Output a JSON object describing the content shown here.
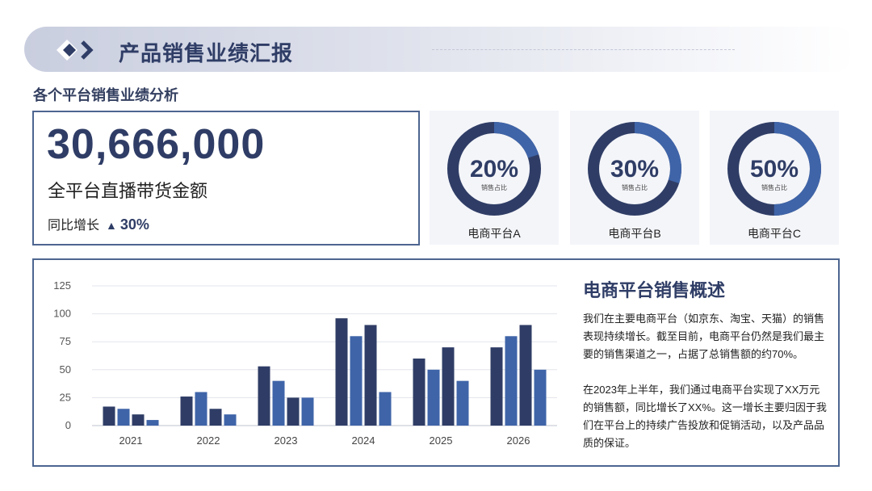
{
  "header": {
    "title": "产品销售业绩汇报"
  },
  "section": {
    "subtitle": "各个平台销售业绩分析"
  },
  "kpi": {
    "value": "30,666,000",
    "label": "全平台直播带货金额",
    "growth_label": "同比增长",
    "growth_arrow": "▲",
    "growth_value": "30%"
  },
  "donuts": [
    {
      "percent": 20,
      "value_label": "20%",
      "caption": "销售占比",
      "platform": "电商平台A"
    },
    {
      "percent": 30,
      "value_label": "30%",
      "caption": "销售占比",
      "platform": "电商平台B"
    },
    {
      "percent": 50,
      "value_label": "50%",
      "caption": "销售占比",
      "platform": "电商平台C"
    }
  ],
  "colors": {
    "dark_navy": "#2f3d66",
    "mid_blue": "#3f64a8",
    "donut_track": "#2f3d66",
    "donut_fill": "#3f64a8"
  },
  "chart_data": {
    "type": "bar",
    "categories": [
      "2021",
      "2022",
      "2023",
      "2024",
      "2025",
      "2026"
    ],
    "series": [
      {
        "values": [
          17,
          26,
          53,
          96,
          60,
          70
        ]
      },
      {
        "values": [
          15,
          30,
          40,
          80,
          50,
          80
        ]
      },
      {
        "values": [
          10,
          15,
          25,
          90,
          70,
          90
        ]
      },
      {
        "values": [
          5,
          10,
          25,
          30,
          40,
          50
        ]
      }
    ],
    "yticks": [
      0,
      25,
      50,
      75,
      100,
      125
    ],
    "ylim": [
      0,
      125
    ],
    "grid": true,
    "legend": "none"
  },
  "description": {
    "title": "电商平台销售概述",
    "paragraph1": "我们在主要电商平台（如京东、淘宝、天猫）的销售表现持续增长。截至目前，电商平台仍然是我们最主要的销售渠道之一，占据了总销售额的约70%。",
    "paragraph2": "在2023年上半年，我们通过电商平台实现了XX万元的销售额，同比增长了XX%。这一增长主要归因于我们在平台上的持续广告投放和促销活动，以及产品品质的保证。"
  }
}
